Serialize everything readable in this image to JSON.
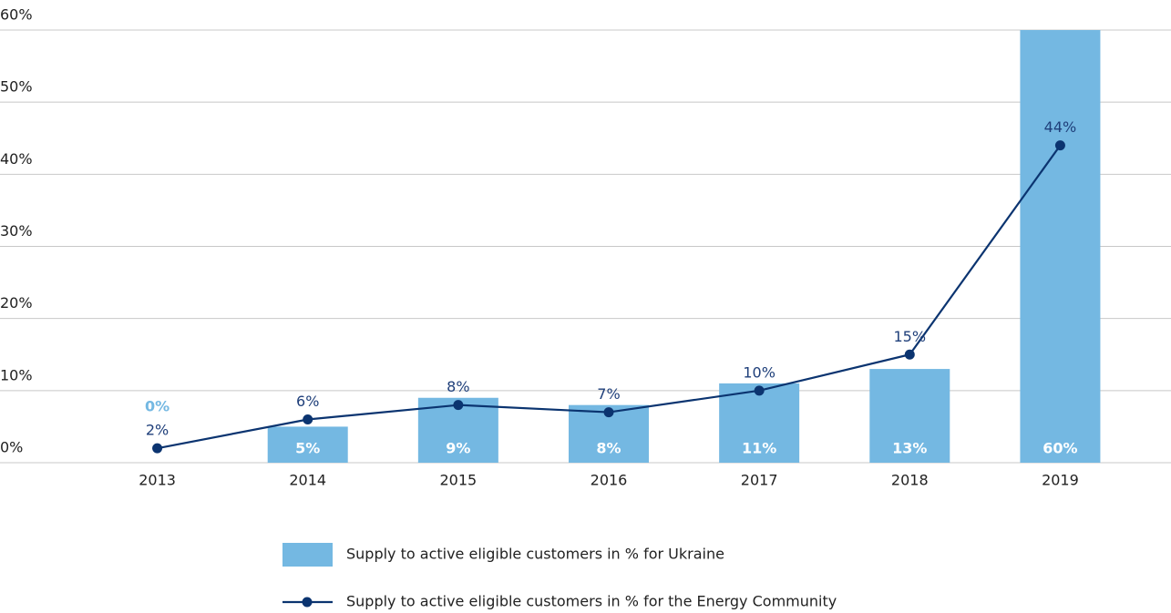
{
  "chart_data": {
    "type": "bar",
    "categories": [
      "2013",
      "2014",
      "2015",
      "2016",
      "2017",
      "2018",
      "2019"
    ],
    "series": [
      {
        "name": "Supply to active eligible customers in % for Ukraine",
        "type": "bar",
        "color": "#74b8e2",
        "values": [
          0,
          5,
          9,
          8,
          11,
          13,
          60
        ],
        "value_labels": [
          "0%",
          "5%",
          "9%",
          "8%",
          "11%",
          "13%",
          "60%"
        ]
      },
      {
        "name": "Supply to active eligible customers in % for the Energy Community",
        "type": "line",
        "color": "#0b3470",
        "values": [
          2,
          6,
          8,
          7,
          10,
          15,
          44
        ],
        "value_labels": [
          "2%",
          "6%",
          "8%",
          "7%",
          "10%",
          "15%",
          "44%"
        ]
      }
    ],
    "ylim": [
      0,
      60
    ],
    "yticks": [
      {
        "value": 0,
        "label": "0%"
      },
      {
        "value": 10,
        "label": "10%"
      },
      {
        "value": 20,
        "label": "20%"
      },
      {
        "value": 30,
        "label": "30%"
      },
      {
        "value": 40,
        "label": "40%"
      },
      {
        "value": 50,
        "label": "50%"
      },
      {
        "value": 60,
        "label": "60%"
      }
    ],
    "grid": true
  }
}
